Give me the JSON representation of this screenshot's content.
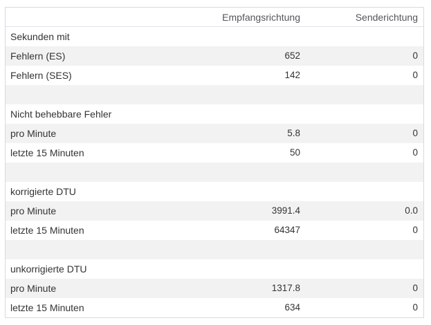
{
  "headers": {
    "rx": "Empfangsrichtung",
    "tx": "Senderichtung"
  },
  "rows": [
    {
      "label": "Sekunden mit",
      "rx": "",
      "tx": ""
    },
    {
      "label": "Fehlern (ES)",
      "rx": "652",
      "tx": "0"
    },
    {
      "label": "Fehlern (SES)",
      "rx": "142",
      "tx": "0"
    },
    {
      "label": "",
      "rx": "",
      "tx": ""
    },
    {
      "label": "Nicht behebbare Fehler",
      "rx": "",
      "tx": ""
    },
    {
      "label": "pro Minute",
      "rx": "5.8",
      "tx": "0"
    },
    {
      "label": "letzte 15 Minuten",
      "rx": "50",
      "tx": "0"
    },
    {
      "label": "",
      "rx": "",
      "tx": ""
    },
    {
      "label": "korrigierte DTU",
      "rx": "",
      "tx": ""
    },
    {
      "label": "pro Minute",
      "rx": "3991.4",
      "tx": "0.0"
    },
    {
      "label": "letzte 15 Minuten",
      "rx": "64347",
      "tx": "0"
    },
    {
      "label": "",
      "rx": "",
      "tx": ""
    },
    {
      "label": "unkorrigierte DTU",
      "rx": "",
      "tx": ""
    },
    {
      "label": "pro Minute",
      "rx": "1317.8",
      "tx": "0"
    },
    {
      "label": "letzte 15 Minuten",
      "rx": "634",
      "tx": "0"
    }
  ]
}
